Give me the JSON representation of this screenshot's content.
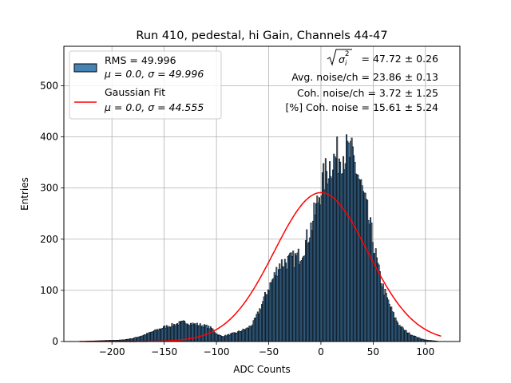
{
  "chart_data": {
    "type": "bar",
    "title": "Run 410, pedestal, hi Gain, Channels 44-47",
    "xlabel": "ADC Counts",
    "ylabel": "Entries",
    "xlim": [
      -246,
      133
    ],
    "ylim": [
      0,
      577
    ],
    "x_ticks": [
      -200,
      -150,
      -100,
      -50,
      0,
      50,
      100
    ],
    "y_ticks": [
      0,
      100,
      200,
      300,
      400,
      500
    ],
    "x_tick_labels": [
      "−200",
      "−150",
      "−100",
      "−50",
      "0",
      "50",
      "100"
    ],
    "y_tick_labels": [
      "0",
      "100",
      "200",
      "300",
      "400",
      "500"
    ],
    "grid": true,
    "legend_position": "top-left",
    "bin_width": 1,
    "histogram_profile": [
      [
        -231,
        0
      ],
      [
        -220,
        1
      ],
      [
        -205,
        2
      ],
      [
        -190,
        3
      ],
      [
        -180,
        6
      ],
      [
        -170,
        12
      ],
      [
        -160,
        20
      ],
      [
        -150,
        28
      ],
      [
        -140,
        33
      ],
      [
        -135,
        36
      ],
      [
        -130,
        38
      ],
      [
        -125,
        35
      ],
      [
        -118,
        33
      ],
      [
        -110,
        30
      ],
      [
        -104,
        25
      ],
      [
        -100,
        15
      ],
      [
        -95,
        10
      ],
      [
        -90,
        12
      ],
      [
        -85,
        15
      ],
      [
        -80,
        18
      ],
      [
        -75,
        22
      ],
      [
        -70,
        26
      ],
      [
        -65,
        35
      ],
      [
        -60,
        55
      ],
      [
        -55,
        80
      ],
      [
        -50,
        105
      ],
      [
        -45,
        125
      ],
      [
        -40,
        150
      ],
      [
        -35,
        155
      ],
      [
        -30,
        158
      ],
      [
        -25,
        162
      ],
      [
        -20,
        168
      ],
      [
        -15,
        190
      ],
      [
        -10,
        220
      ],
      [
        -5,
        255
      ],
      [
        0,
        300
      ],
      [
        5,
        330
      ],
      [
        10,
        350
      ],
      [
        15,
        360
      ],
      [
        20,
        368
      ],
      [
        25,
        370
      ],
      [
        30,
        360
      ],
      [
        35,
        330
      ],
      [
        40,
        290
      ],
      [
        45,
        245
      ],
      [
        50,
        195
      ],
      [
        55,
        140
      ],
      [
        60,
        102
      ],
      [
        65,
        75
      ],
      [
        70,
        50
      ],
      [
        75,
        32
      ],
      [
        80,
        22
      ],
      [
        85,
        15
      ],
      [
        90,
        10
      ],
      [
        95,
        6
      ],
      [
        100,
        3
      ],
      [
        105,
        2
      ],
      [
        110,
        1
      ],
      [
        115,
        0
      ]
    ],
    "series": [
      {
        "name": "Gaussian Fit",
        "kind": "gaussian",
        "mu": 0.0,
        "sigma": 44.555,
        "amplitude": 291,
        "x_range": [
          -231,
          115
        ],
        "color": "#ff0000"
      }
    ],
    "histogram_color": "#4682b4"
  },
  "legend": {
    "hist_label_1": "RMS = 49.996",
    "hist_label_2": "μ = 0.0, σ = 49.996",
    "fit_label_1": "Gaussian Fit",
    "fit_label_2": "μ = 0.0, σ = 44.555"
  },
  "annotations": {
    "sigma_value": "= 47.72 ± 0.26",
    "avg_noise": "Avg. noise/ch = 23.86 ± 0.13",
    "coh_noise": "Coh. noise/ch = 3.72 ± 1.25",
    "pct_coh_noise": "[%] Coh. noise = 15.61 ± 5.24"
  }
}
